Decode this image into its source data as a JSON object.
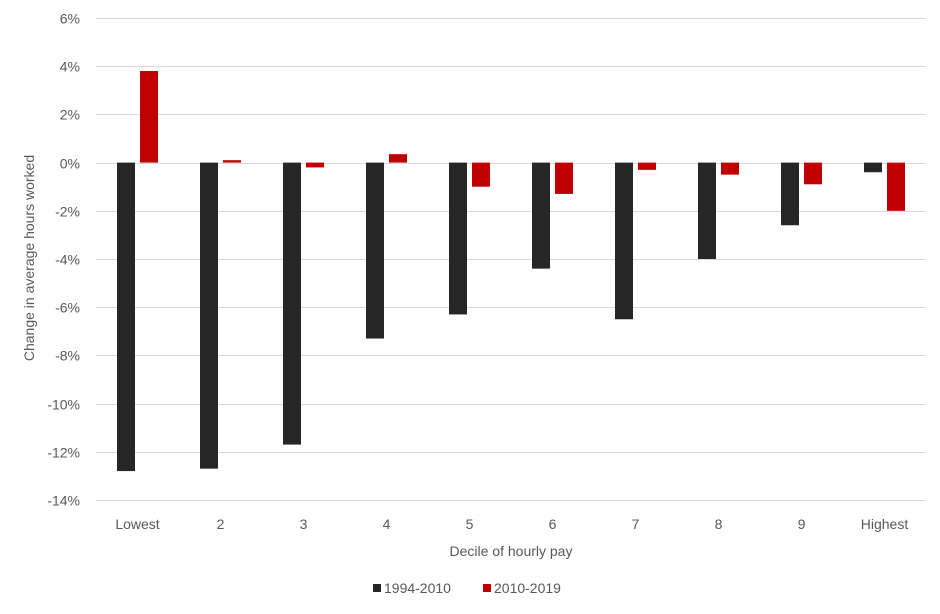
{
  "chart_data": {
    "type": "bar",
    "title": "",
    "xlabel": "Decile of hourly pay",
    "ylabel": "Change in average hours worked",
    "categories": [
      "Lowest",
      "2",
      "3",
      "4",
      "5",
      "6",
      "7",
      "8",
      "9",
      "Highest"
    ],
    "series": [
      {
        "name": "1994-2010",
        "color": "#262626",
        "values": [
          -12.8,
          -12.7,
          -11.7,
          -7.3,
          -6.3,
          -4.4,
          -6.5,
          -4.0,
          -2.6,
          -0.4
        ]
      },
      {
        "name": "2010-2019",
        "color": "#c00000",
        "values": [
          3.8,
          0.1,
          -0.2,
          0.35,
          -1.0,
          -1.3,
          -0.3,
          -0.5,
          -0.9,
          -2.0
        ]
      }
    ],
    "ylim": [
      -14,
      6
    ],
    "yticks": [
      6,
      4,
      2,
      0,
      -2,
      -4,
      -6,
      -8,
      -10,
      -12,
      -14
    ],
    "ytick_labels": [
      "6%",
      "4%",
      "2%",
      "0%",
      "-2%",
      "-4%",
      "-6%",
      "-8%",
      "-10%",
      "-12%",
      "-14%"
    ],
    "grid": true,
    "legend_position": "bottom"
  }
}
